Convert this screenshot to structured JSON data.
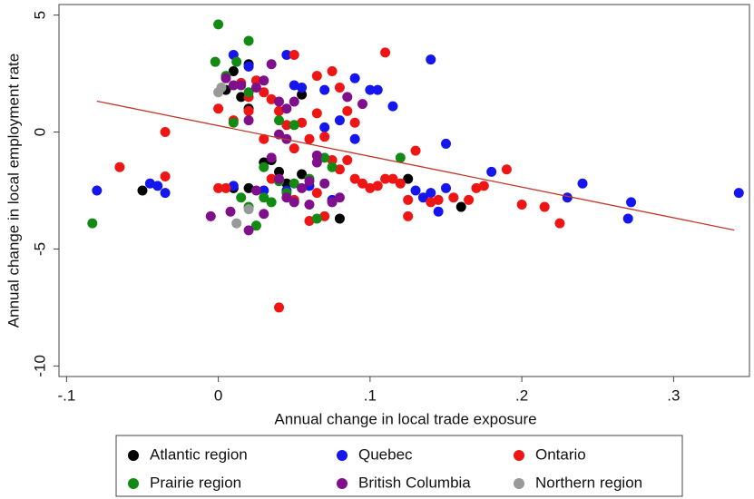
{
  "chart_data": {
    "type": "scatter",
    "x_label": "Annual change in local trade exposure",
    "y_label": "Annual change in local employment rate",
    "xlim": [
      -0.105,
      0.35
    ],
    "ylim": [
      -10.45,
      5.45
    ],
    "xticks": [
      {
        "value": -0.1,
        "label": "-.1"
      },
      {
        "value": 0,
        "label": "0"
      },
      {
        "value": 0.1,
        "label": ".1"
      },
      {
        "value": 0.2,
        "label": ".2"
      },
      {
        "value": 0.3,
        "label": ".3"
      }
    ],
    "yticks": [
      5,
      0,
      -5,
      -10
    ],
    "fit_line": {
      "color": "#c0392b",
      "x": [
        -0.08,
        0.34
      ],
      "y": [
        1.32,
        -4.19
      ]
    },
    "series": [
      {
        "name": "Atlantic region",
        "color": "#000000",
        "x": [
          -0.05,
          0.01,
          0.02,
          0.005,
          0.015,
          0.02,
          0.03,
          0.035,
          0.04,
          0.055,
          0.055,
          0.08,
          0.125,
          0.16,
          0.045,
          0.02,
          0.01
        ],
        "values": [
          -2.5,
          2.6,
          2.9,
          1.8,
          1.5,
          1.0,
          -1.3,
          -1.2,
          -1.7,
          -1.8,
          1.6,
          -3.7,
          -2.0,
          -3.2,
          -2.2,
          -2.4,
          -2.4
        ]
      },
      {
        "name": "Quebec",
        "color": "#1515ee",
        "x": [
          -0.08,
          -0.045,
          -0.04,
          -0.035,
          0.01,
          0.02,
          0.045,
          0.05,
          0.055,
          0.07,
          0.08,
          0.09,
          0.1,
          0.105,
          0.115,
          0.14,
          0.15,
          0.13,
          0.135,
          0.14,
          0.145,
          0.15,
          0.18,
          0.23,
          0.24,
          0.27,
          0.272,
          0.343,
          0.075,
          0.06,
          0.045,
          0.03,
          0.01,
          0.07,
          0.09
        ],
        "values": [
          -2.5,
          -2.2,
          -2.3,
          -2.6,
          3.3,
          2.8,
          3.3,
          2.0,
          1.9,
          1.8,
          0.5,
          2.3,
          1.8,
          1.8,
          1.1,
          3.1,
          -0.5,
          -2.5,
          -2.8,
          -2.6,
          -3.4,
          -2.4,
          -1.7,
          -2.8,
          -2.2,
          -3.7,
          -3.0,
          -2.6,
          -2.9,
          -2.3,
          -2.5,
          -2.5,
          -2.3,
          0.2,
          -0.3
        ]
      },
      {
        "name": "Ontario",
        "color": "#ee1515",
        "x": [
          -0.065,
          -0.035,
          -0.035,
          0.0,
          0.005,
          0.0,
          0.01,
          0.02,
          0.03,
          0.035,
          0.04,
          0.045,
          0.05,
          0.04,
          0.055,
          0.06,
          0.065,
          0.07,
          0.075,
          0.08,
          0.085,
          0.08,
          0.09,
          0.09,
          0.095,
          0.1,
          0.105,
          0.11,
          0.11,
          0.115,
          0.125,
          0.125,
          0.13,
          0.14,
          0.145,
          0.155,
          0.165,
          0.17,
          0.175,
          0.19,
          0.2,
          0.215,
          0.225,
          0.06,
          0.07,
          0.075,
          0.05,
          0.065,
          0.03,
          0.12,
          0.085,
          0.065,
          0.05,
          0.035,
          0.02,
          0.025,
          0.015
        ],
        "values": [
          -1.5,
          0.0,
          -1.9,
          -2.4,
          -2.4,
          1.0,
          0.5,
          1.5,
          1.7,
          1.4,
          0.9,
          0.3,
          3.3,
          -7.5,
          0.4,
          -0.3,
          2.4,
          -0.2,
          2.6,
          1.9,
          0.9,
          -1.6,
          0.4,
          -2.0,
          -2.2,
          -2.4,
          -2.3,
          3.4,
          -2.0,
          -2.0,
          -2.9,
          -3.6,
          -0.8,
          -3.0,
          -2.9,
          -2.8,
          -2.9,
          -2.4,
          -2.3,
          -1.6,
          -3.1,
          -3.2,
          -3.9,
          -3.8,
          -3.6,
          -1.2,
          -0.7,
          0.8,
          -0.3,
          -2.2,
          -1.2,
          -2.6,
          -2.9,
          -2.0,
          0.9,
          2.2,
          2.1
        ]
      },
      {
        "name": "Prairie region",
        "color": "#138a13",
        "x": [
          -0.083,
          0.0,
          0.02,
          -0.002,
          0.005,
          0.012,
          0.02,
          0.01,
          0.04,
          0.05,
          0.03,
          0.035,
          0.04,
          0.045,
          0.05,
          0.06,
          0.065,
          0.07,
          0.075,
          0.12,
          0.02,
          0.025,
          0.03,
          0.015
        ],
        "values": [
          -3.9,
          4.6,
          3.9,
          3.0,
          2.4,
          3.0,
          1.7,
          0.4,
          0.5,
          0.3,
          -2.8,
          -3.0,
          -2.1,
          -2.6,
          -2.2,
          -2.0,
          -3.7,
          -1.1,
          -1.5,
          -1.1,
          -3.2,
          -4.0,
          -1.5,
          -2.8
        ]
      },
      {
        "name": "British Columbia",
        "color": "#7f0f8a",
        "x": [
          -0.005,
          0.008,
          0.02,
          0.015,
          0.025,
          0.03,
          0.035,
          0.04,
          0.045,
          0.05,
          0.04,
          0.045,
          0.035,
          0.04,
          0.045,
          0.05,
          0.055,
          0.06,
          0.065,
          0.07,
          0.075,
          0.08,
          0.085,
          0.095,
          0.02,
          0.025,
          0.03,
          0.06,
          0.065,
          0.01,
          0.005
        ],
        "values": [
          -3.6,
          -3.4,
          -4.2,
          2.0,
          1.9,
          2.2,
          2.9,
          1.3,
          1.0,
          1.3,
          -0.1,
          -0.3,
          -1.1,
          -2.0,
          -2.8,
          -3.0,
          -2.4,
          -2.1,
          -1.3,
          -2.2,
          -3.0,
          -2.8,
          1.5,
          1.2,
          0.5,
          -2.5,
          -3.5,
          -3.1,
          -1.0,
          2.0,
          2.3
        ]
      },
      {
        "name": "Northern region",
        "color": "#999999",
        "x": [
          0.0,
          0.002,
          0.012,
          0.02
        ],
        "values": [
          1.7,
          1.9,
          -3.9,
          -3.3
        ]
      }
    ]
  }
}
